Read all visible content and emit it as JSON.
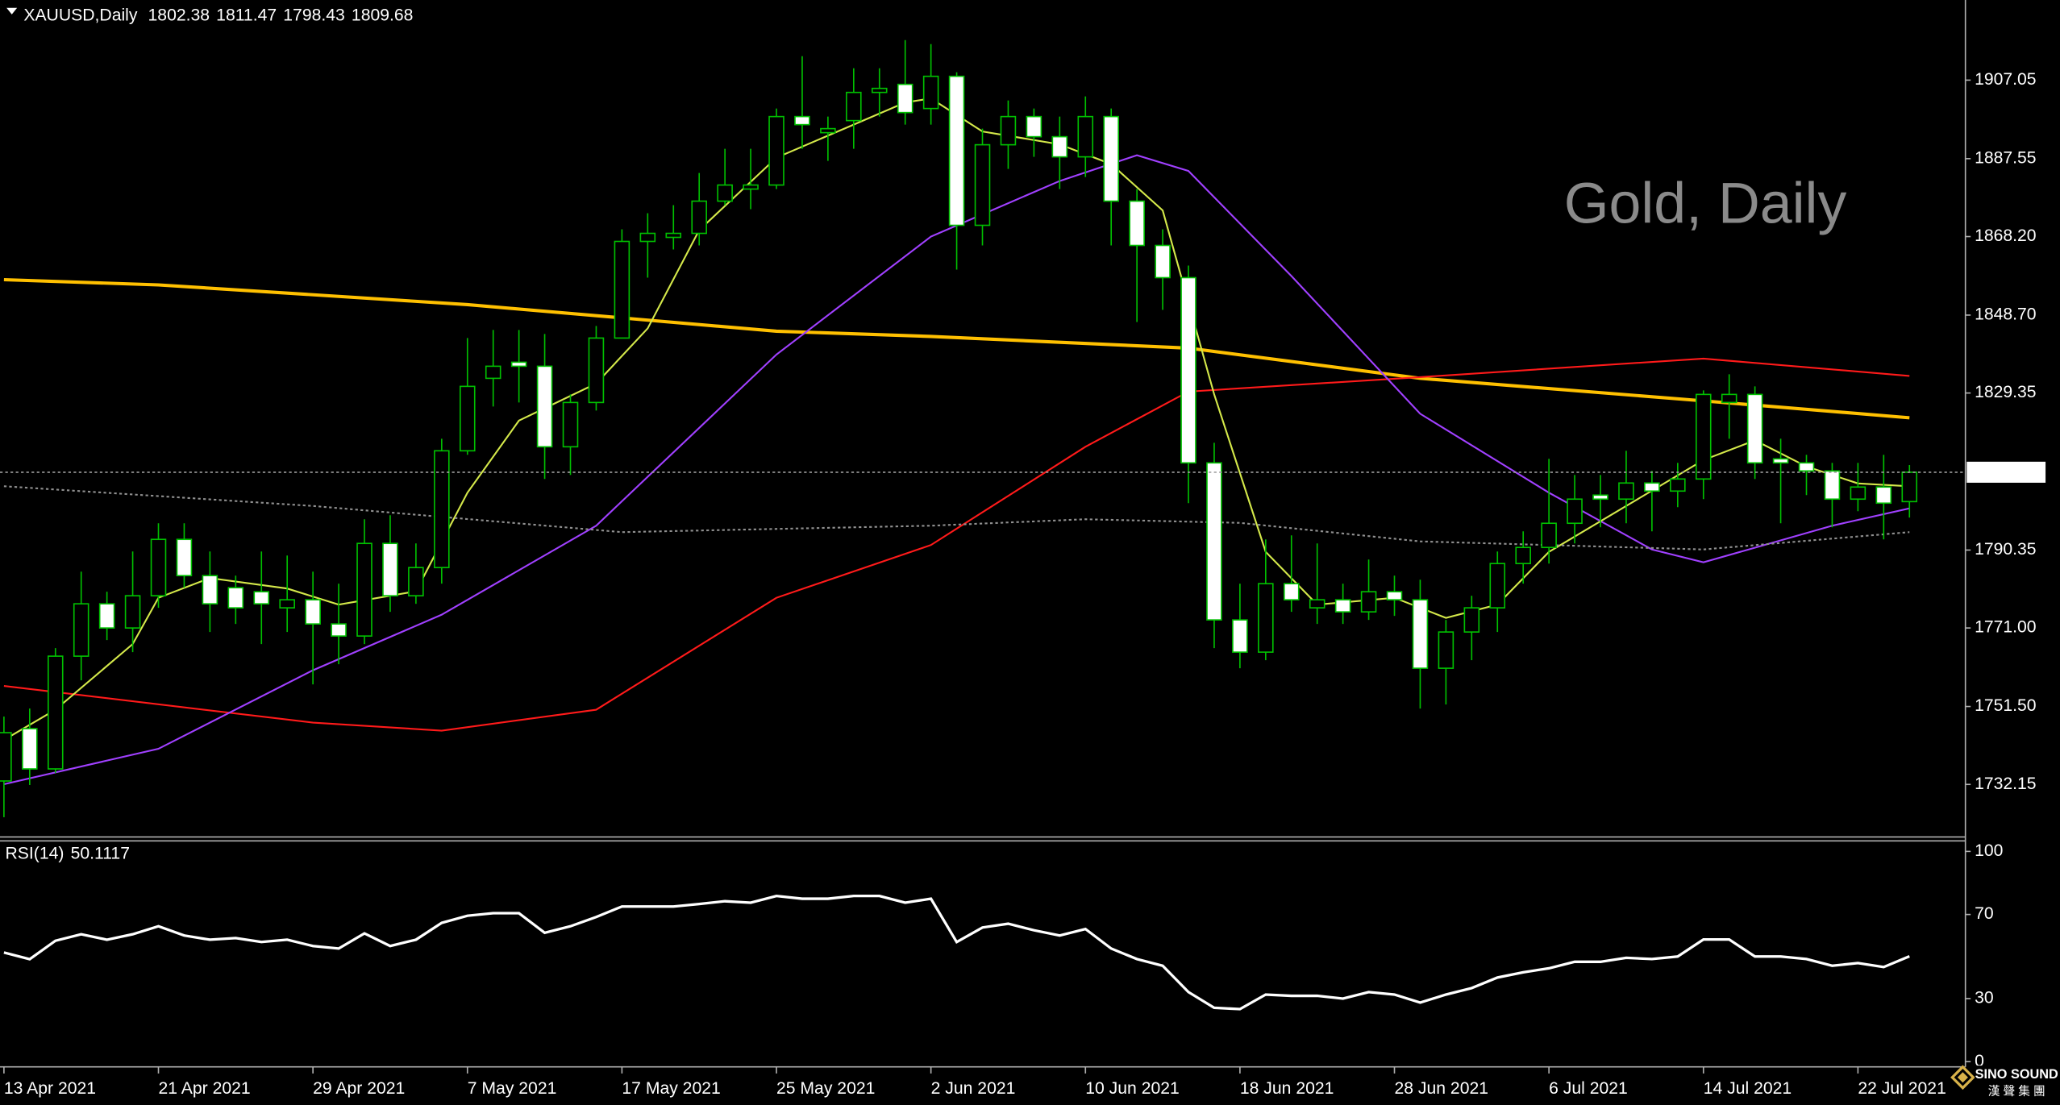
{
  "chart_data": [
    {
      "type": "candlestick",
      "symbol": "XAUUSD,Daily",
      "watermark": "Gold, Daily",
      "categories": [
        "13 Apr 2021",
        null,
        null,
        null,
        null,
        null,
        "21 Apr 2021",
        null,
        null,
        null,
        null,
        null,
        "29 Apr 2021",
        null,
        null,
        null,
        null,
        null,
        "7 May 2021",
        null,
        null,
        null,
        null,
        null,
        "17 May 2021",
        null,
        null,
        null,
        null,
        null,
        "25 May 2021",
        null,
        null,
        null,
        null,
        null,
        "2 Jun 2021",
        null,
        null,
        null,
        null,
        null,
        "10 Jun 2021",
        null,
        null,
        null,
        null,
        null,
        "18 Jun 2021",
        null,
        null,
        null,
        null,
        null,
        "28 Jun 2021",
        null,
        null,
        null,
        null,
        null,
        "6 Jul 2021",
        null,
        null,
        null,
        null,
        null,
        "14 Jul 2021",
        null,
        null,
        null,
        null,
        null,
        "22 Jul 2021",
        null,
        null
      ],
      "open": [
        1733,
        1746,
        1736,
        1764,
        1777,
        1771,
        1779,
        1793,
        1784,
        1781,
        1780,
        1776,
        1778,
        1772,
        1769,
        1792,
        1779,
        1786,
        1815,
        1833,
        1837,
        1836,
        1816,
        1827,
        1843,
        1867,
        1868,
        1869,
        1877,
        1880,
        1881,
        1898,
        1894,
        1897,
        1904,
        1906,
        1900,
        1908,
        1871,
        1891,
        1898,
        1893,
        1888,
        1898,
        1877,
        1866,
        1858,
        1812,
        1773,
        1765,
        1782,
        1776,
        1778,
        1775,
        1780,
        1778,
        1761,
        1770,
        1776,
        1787,
        1791,
        1797,
        1804,
        1803,
        1807,
        1805,
        1808,
        1827,
        1829,
        1813,
        1812,
        1810,
        1803,
        1806,
        1802.38
      ],
      "high": [
        1749,
        1751,
        1766,
        1785,
        1780,
        1790,
        1797,
        1797,
        1790,
        1784,
        1790,
        1789,
        1785,
        1782,
        1798,
        1799,
        1792,
        1818,
        1843,
        1845,
        1845,
        1844,
        1829,
        1846,
        1870,
        1874,
        1876,
        1884,
        1890,
        1890,
        1900,
        1913,
        1898,
        1910,
        1910,
        1917,
        1916,
        1909,
        1895,
        1902,
        1900,
        1898,
        1903,
        1900,
        1880,
        1870,
        1861,
        1817,
        1782,
        1793,
        1794,
        1792,
        1782,
        1788,
        1784,
        1783,
        1773,
        1779,
        1790,
        1795,
        1813,
        1809,
        1809,
        1815,
        1810,
        1812,
        1830,
        1834,
        1831,
        1818,
        1814,
        1812,
        1812,
        1814,
        1811.47
      ],
      "low": [
        1724,
        1732,
        1735,
        1758,
        1768,
        1765,
        1776,
        1781,
        1770,
        1772,
        1767,
        1770,
        1757,
        1762,
        1767,
        1775,
        1777,
        1782,
        1814,
        1826,
        1827,
        1808,
        1809,
        1825,
        1843,
        1858,
        1865,
        1866,
        1876,
        1875,
        1880,
        1890,
        1887,
        1890,
        1898,
        1896,
        1896,
        1860,
        1866,
        1885,
        1888,
        1880,
        1883,
        1866,
        1847,
        1850,
        1802,
        1766,
        1761,
        1763,
        1775,
        1772,
        1772,
        1773,
        1774,
        1751,
        1752,
        1763,
        1770,
        1782,
        1787,
        1792,
        1796,
        1797,
        1795,
        1801,
        1803,
        1818,
        1808,
        1797,
        1804,
        1796,
        1800,
        1793,
        1798.43
      ],
      "close": [
        1745,
        1736,
        1764,
        1777,
        1771,
        1779,
        1793,
        1784,
        1777,
        1776,
        1777,
        1778,
        1772,
        1769,
        1792,
        1779,
        1786,
        1815,
        1831,
        1836,
        1836,
        1816,
        1827,
        1843,
        1867,
        1869,
        1869,
        1877,
        1881,
        1881,
        1898,
        1896,
        1895,
        1904,
        1905,
        1899,
        1908,
        1871,
        1891,
        1898,
        1893,
        1888,
        1898,
        1877,
        1866,
        1858,
        1812,
        1773,
        1765,
        1782,
        1778,
        1778,
        1775,
        1780,
        1778,
        1761,
        1770,
        1776,
        1787,
        1791,
        1797,
        1803,
        1803,
        1807,
        1805,
        1808,
        1829,
        1829,
        1812,
        1812,
        1810,
        1803,
        1806,
        1802,
        1809.68
      ],
      "up_color": "#00c000",
      "down_color": "#ffffff",
      "current_price_color": "#ffffff",
      "series": [
        {
          "color": "#ffc000",
          "x": [
            0,
            6,
            18,
            30,
            36,
            46,
            55,
            66,
            74
          ],
          "values": [
            1857.5,
            1856.2,
            1851.3,
            1844.7,
            1843.4,
            1840.5,
            1833,
            1827.4,
            1823.2
          ]
        },
        {
          "color": "#ff1a1a",
          "x": [
            0,
            12,
            17,
            23,
            30,
            36,
            42,
            46,
            55,
            66,
            74
          ],
          "values": [
            1756.6,
            1747.5,
            1745.5,
            1750.7,
            1778.5,
            1791.6,
            1816,
            1829.7,
            1833.3,
            1837.9,
            1833.6
          ]
        },
        {
          "color": "#a040ff",
          "x": [
            0,
            6,
            12,
            17,
            23,
            30,
            36,
            41,
            44,
            46,
            50,
            55,
            60,
            64,
            66,
            71,
            74
          ],
          "values": [
            1732.2,
            1741,
            1760.5,
            1774.3,
            1796.4,
            1838.9,
            1868.2,
            1882,
            1888.4,
            1884.5,
            1858.4,
            1824.2,
            1804.6,
            1790.5,
            1787.3,
            1796.4,
            1800.7
          ]
        },
        {
          "color": "#d4e84a",
          "x": [
            0,
            2,
            5,
            6,
            8,
            11,
            13,
            16,
            18,
            20,
            23,
            25,
            27,
            30,
            33,
            35,
            36,
            38,
            41,
            43,
            45,
            47,
            49,
            51,
            54,
            56,
            58,
            60,
            63,
            66,
            68,
            70,
            72,
            74
          ],
          "values": [
            1743.2,
            1750.7,
            1767,
            1778.5,
            1783.4,
            1780.8,
            1776.8,
            1780.1,
            1804.6,
            1822.5,
            1831.7,
            1845.4,
            1869.8,
            1887.8,
            1896,
            1901.5,
            1902.5,
            1894.3,
            1891.1,
            1886.2,
            1874.7,
            1829,
            1789.9,
            1776.8,
            1778.5,
            1773.5,
            1776.8,
            1789.9,
            1801.3,
            1812.7,
            1817.6,
            1811.1,
            1806.9,
            1806.2
          ]
        },
        {
          "color": "#909090",
          "dashed": true,
          "x": [
            0,
            12,
            24,
            36,
            42,
            48,
            55,
            66,
            74
          ],
          "values": [
            1806.2,
            1801.3,
            1794.8,
            1796.4,
            1798,
            1797.1,
            1792.5,
            1790.5,
            1794.8
          ]
        }
      ],
      "ylim": [
        1719.1,
        1926.95
      ],
      "yticks": [
        1907.05,
        1887.55,
        {
          "value": 1868.2,
          "label": "1868.20"
        },
        {
          "value": 1848.7,
          "label": "1848.70"
        },
        1829.35,
        1790.35,
        {
          "value": 1771,
          "label": "1771.00"
        },
        {
          "value": 1751.5,
          "label": "1751.50"
        },
        1732.15
      ],
      "grid": false
    },
    {
      "type": "line",
      "label": "RSI(14)",
      "color": "#ffffff",
      "values": [
        51.9,
        48.75,
        57.5,
        60.6,
        58,
        60.6,
        64.4,
        60,
        58,
        58.8,
        56.9,
        58,
        55,
        53.8,
        61,
        55,
        58,
        66,
        69.4,
        70.6,
        70.6,
        61.3,
        64.4,
        68.8,
        73.8,
        73.8,
        73.8,
        75,
        76.3,
        75.6,
        78.8,
        77.5,
        77.5,
        78.8,
        78.8,
        75.6,
        77.5,
        56.9,
        63.8,
        65.6,
        62.5,
        60,
        63.1,
        53.8,
        48.8,
        45.6,
        33.1,
        25.6,
        25,
        31.9,
        31.3,
        31.3,
        30,
        33.1,
        31.9,
        28.1,
        31.9,
        35,
        40,
        42.5,
        44.4,
        47.5,
        47.5,
        49.4,
        48.8,
        50,
        58.1,
        58.1,
        50,
        50,
        48.8,
        45.6,
        46.9,
        45,
        50.1117
      ],
      "ylim": [
        0,
        100
      ],
      "yticks": [
        100,
        70,
        30,
        0
      ]
    }
  ],
  "logo": {
    "name": "SINO SOUND",
    "subtitle": "漢 聲 集 團"
  }
}
